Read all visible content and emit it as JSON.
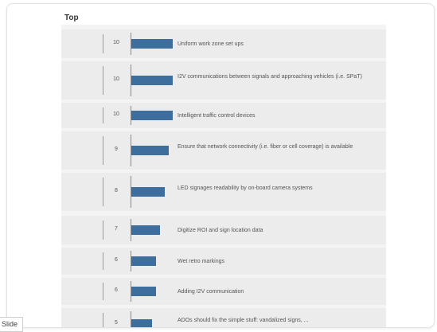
{
  "chart_data": {
    "type": "bar",
    "orientation": "horizontal",
    "title": "Top",
    "categories": [
      "Uniform work zone set ups",
      "I2V communications between signals and approaching vehicles (i.e. SPaT)",
      "Intelligent traffic control devices",
      "Ensure that network connectivity (i.e. fiber or cell coverage) is available",
      "LED signages readability by on-board camera systems",
      "Digitize ROI and sign location data",
      "Wet retro markings",
      "Adding I2V communication",
      "ADOs should fix the simple stuff: vandalized signs, ..."
    ],
    "values": [
      10,
      10,
      10,
      9,
      8,
      7,
      6,
      6,
      5
    ],
    "value_labels": [
      "10",
      "10",
      "10",
      "9",
      "8",
      "7",
      "6",
      "6",
      "5"
    ],
    "xlim": [
      0,
      10
    ],
    "bar_color": "#3e6e9e",
    "grid": false
  },
  "ui": {
    "slide_tab_label": "Slide"
  }
}
